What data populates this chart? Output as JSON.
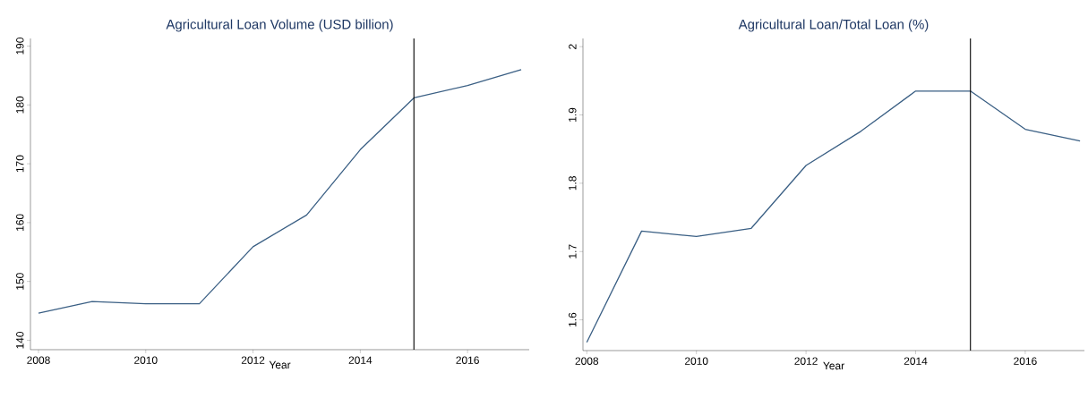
{
  "chart_data": [
    {
      "type": "line",
      "title": "Agricultural Loan Volume (USD billion)",
      "xlabel": "Year",
      "x": [
        2008,
        2009,
        2010,
        2011,
        2012,
        2013,
        2014,
        2015,
        2016,
        2017
      ],
      "values": [
        144.6,
        146.6,
        146.2,
        146.2,
        155.9,
        161.3,
        172.4,
        181.2,
        183.3,
        186.0
      ],
      "color": "#3a5f84",
      "xlim": [
        2007.85,
        2017.15
      ],
      "ylim": [
        138.4,
        191.3
      ],
      "xticks": [
        2008,
        2010,
        2012,
        2014,
        2016
      ],
      "yticks": [
        140,
        150,
        160,
        170,
        180,
        190
      ],
      "ref_lines": [
        {
          "axis": "x",
          "value": 2015,
          "color": "#000000"
        }
      ]
    },
    {
      "type": "line",
      "title": "Agricultural Loan/Total Loan (%)",
      "xlabel": "Year",
      "x": [
        2008,
        2009,
        2010,
        2011,
        2012,
        2013,
        2014,
        2015,
        2016,
        2017
      ],
      "values": [
        1.567,
        1.73,
        1.722,
        1.734,
        1.826,
        1.876,
        1.935,
        1.935,
        1.879,
        1.862
      ],
      "color": "#3a5f84",
      "xlim": [
        2007.93,
        2017.08
      ],
      "ylim": [
        1.555,
        2.012
      ],
      "xticks": [
        2008,
        2010,
        2012,
        2014,
        2016
      ],
      "yticks": [
        1.6,
        1.7,
        1.8,
        1.9,
        2
      ],
      "ref_lines": [
        {
          "axis": "x",
          "value": 2015,
          "color": "#000000"
        }
      ]
    }
  ]
}
